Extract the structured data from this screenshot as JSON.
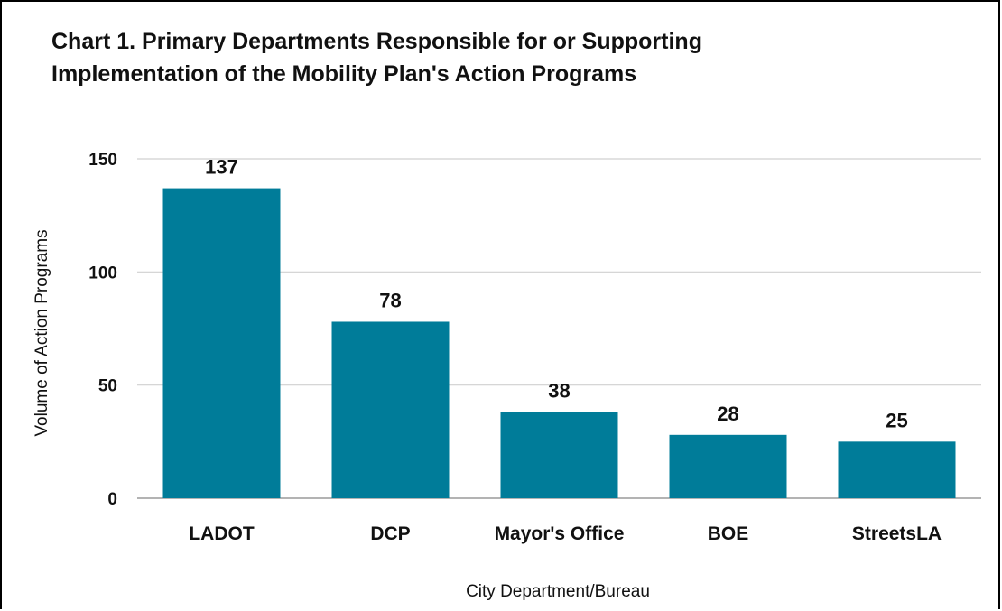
{
  "chart_data": {
    "type": "bar",
    "title_lines": [
      "Chart 1. Primary Departments Responsible for or Supporting",
      "Implementation of the Mobility Plan's Action Programs"
    ],
    "categories": [
      "LADOT",
      "DCP",
      "Mayor's Office",
      "BOE",
      "StreetsLA"
    ],
    "values": [
      137,
      78,
      38,
      28,
      25
    ],
    "data_labels": [
      "137",
      "78",
      "38",
      "28",
      "25"
    ],
    "xlabel": "City Department/Bureau",
    "ylabel": "Volume of Action Programs",
    "ylim": [
      0,
      150
    ],
    "yticks": [
      0,
      50,
      100,
      150
    ],
    "ytick_labels": [
      "0",
      "50",
      "100",
      "150"
    ],
    "grid": true,
    "legend": "none",
    "bar_color": "#007C99",
    "grid_color": "#D0D0D0"
  }
}
